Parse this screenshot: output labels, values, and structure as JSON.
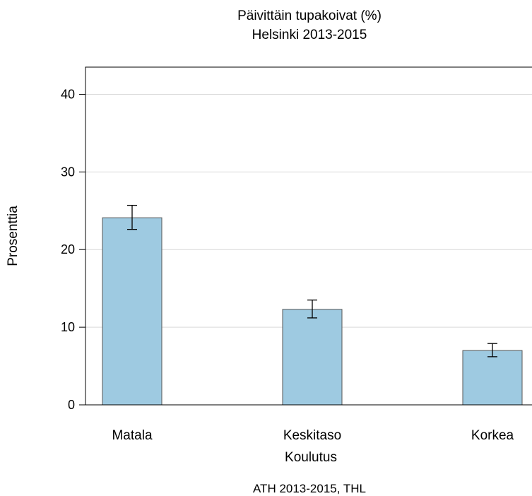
{
  "chart_data": {
    "type": "bar",
    "title": "Päivittäin tupakoivat (%)",
    "subtitle": "Helsinki 2013-2015",
    "categories": [
      "Matala",
      "Keskitaso",
      "Korkea"
    ],
    "series": [
      {
        "values": [
          24.1,
          12.3,
          7.0
        ],
        "error_low": [
          22.6,
          11.2,
          6.2
        ],
        "error_high": [
          25.7,
          13.5,
          7.9
        ]
      }
    ],
    "xlabel": "Koulutus",
    "ylabel": "Prosenttia",
    "ylim": [
      0,
      43.5
    ],
    "yticks": [
      0,
      10,
      20,
      30,
      40
    ],
    "grid": true,
    "legend": "none",
    "source": "ATH 2013-2015, THL",
    "colors": {
      "bar_fill": "#9ecae1",
      "bar_stroke": "#555555",
      "grid": "#d9d9d9",
      "axis": "#000000"
    }
  }
}
